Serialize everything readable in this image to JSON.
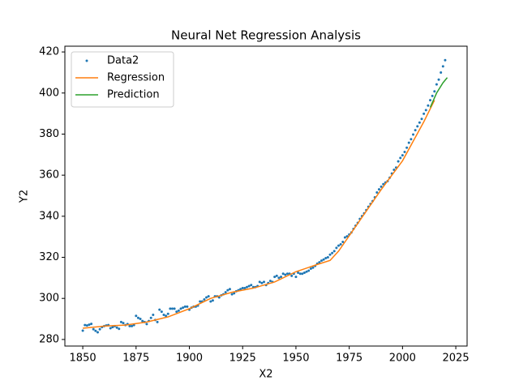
{
  "chart_data": {
    "type": "scatter",
    "title": "Neural Net Regression Analysis",
    "x_label": "X2",
    "y_label": "Y2",
    "xlim": [
      1841.6,
      2030.3
    ],
    "ylim": [
      276.8,
      422.8
    ],
    "xticks": [
      1850,
      1875,
      1900,
      1925,
      1950,
      1975,
      2000,
      2025
    ],
    "yticks": [
      280,
      300,
      320,
      340,
      360,
      380,
      400,
      420
    ],
    "legend": "upper left",
    "series": [
      {
        "name": "Data2",
        "type": "scatter",
        "color": "#1f77b4",
        "x": [
          1850,
          1851,
          1852,
          1853,
          1854,
          1855,
          1856,
          1857,
          1858,
          1859,
          1860,
          1861,
          1862,
          1863,
          1864,
          1865,
          1866,
          1867,
          1868,
          1869,
          1870,
          1871,
          1872,
          1873,
          1874,
          1875,
          1876,
          1877,
          1878,
          1879,
          1880,
          1881,
          1882,
          1883,
          1884,
          1885,
          1886,
          1887,
          1888,
          1889,
          1890,
          1891,
          1892,
          1893,
          1894,
          1895,
          1896,
          1897,
          1898,
          1899,
          1900,
          1901,
          1902,
          1903,
          1904,
          1905,
          1906,
          1907,
          1908,
          1909,
          1910,
          1911,
          1912,
          1913,
          1914,
          1915,
          1916,
          1917,
          1918,
          1919,
          1920,
          1921,
          1922,
          1923,
          1924,
          1925,
          1926,
          1927,
          1928,
          1929,
          1930,
          1931,
          1932,
          1933,
          1934,
          1935,
          1936,
          1937,
          1938,
          1939,
          1940,
          1941,
          1942,
          1943,
          1944,
          1945,
          1946,
          1947,
          1948,
          1949,
          1950,
          1951,
          1952,
          1953,
          1954,
          1955,
          1956,
          1957,
          1958,
          1959,
          1960,
          1961,
          1962,
          1963,
          1964,
          1965,
          1966,
          1967,
          1968,
          1969,
          1970,
          1971,
          1972,
          1973,
          1974,
          1975,
          1976,
          1977,
          1978,
          1979,
          1980,
          1981,
          1982,
          1983,
          1984,
          1985,
          1986,
          1987,
          1988,
          1989,
          1990,
          1991,
          1992,
          1993,
          1994,
          1995,
          1996,
          1997,
          1998,
          1999,
          2000,
          2001,
          2002,
          2003,
          2004,
          2005,
          2006,
          2007,
          2008,
          2009,
          2010,
          2011,
          2012,
          2013,
          2014,
          2015,
          2016,
          2017,
          2018,
          2019,
          2020
        ],
        "values": [
          284.3,
          287,
          286.8,
          287.2,
          287.6,
          285,
          284.2,
          283.5,
          285,
          286,
          286.5,
          286.8,
          287,
          285.5,
          286,
          286.5,
          285.8,
          285.2,
          288.5,
          288,
          287,
          287.5,
          286.5,
          286.5,
          287,
          291.5,
          290.5,
          290,
          289,
          288.5,
          287.5,
          289,
          290.5,
          292,
          289.5,
          288.5,
          294.5,
          293.5,
          292,
          291.5,
          292.5,
          295,
          295,
          295,
          293.5,
          294,
          295,
          295.5,
          296,
          296,
          294.5,
          295.5,
          296,
          296,
          296.5,
          298.5,
          298.5,
          299.5,
          300.5,
          301,
          298.5,
          299,
          301,
          301,
          300.5,
          301.5,
          302,
          303,
          304,
          304.5,
          302,
          302.5,
          303.5,
          304,
          304.5,
          305,
          305,
          305.5,
          306,
          306.5,
          305.5,
          305.5,
          306,
          308,
          307.5,
          308,
          306.5,
          307.5,
          308.5,
          308,
          310.5,
          311,
          310,
          310.5,
          312,
          311.5,
          312,
          312,
          311,
          312,
          310.5,
          312.5,
          312,
          312,
          312.5,
          313,
          313.5,
          314.5,
          315,
          315.8,
          316.9,
          317.6,
          318.4,
          318.9,
          319.6,
          320,
          321.3,
          322.1,
          323,
          324.6,
          325.7,
          326.3,
          327.5,
          329.7,
          330.2,
          331.1,
          332.1,
          333.8,
          335.4,
          336.8,
          338.7,
          340.1,
          341.4,
          343,
          344.6,
          346,
          347.4,
          349.2,
          351.6,
          353.1,
          354.4,
          355.6,
          356.4,
          357.1,
          358.8,
          360.8,
          362.6,
          363.7,
          366.7,
          368.4,
          369.7,
          371.3,
          373.4,
          375.8,
          377.5,
          379.8,
          381.9,
          383.8,
          385.6,
          387.4,
          389.9,
          391.7,
          393.9,
          396.5,
          398.6,
          400.8,
          404.2,
          406.5,
          410,
          413,
          416
        ]
      },
      {
        "name": "Regression",
        "type": "line",
        "color": "#ff7f0e",
        "x": [
          1850,
          1860,
          1870,
          1880,
          1890,
          1900,
          1910,
          1920,
          1930,
          1940,
          1950,
          1960,
          1966,
          1970,
          1980,
          1990,
          2000,
          2010,
          2015
        ],
        "values": [
          285.5,
          286.5,
          287,
          288.5,
          291,
          295,
          300,
          303,
          305,
          308,
          313,
          316.5,
          318.5,
          323,
          338,
          353,
          367,
          386,
          396.5
        ]
      },
      {
        "name": "Prediction",
        "type": "line",
        "color": "#2ca02c",
        "x": [
          2013,
          2016,
          2019,
          2021
        ],
        "values": [
          393,
          400,
          405,
          407.5
        ]
      }
    ]
  }
}
